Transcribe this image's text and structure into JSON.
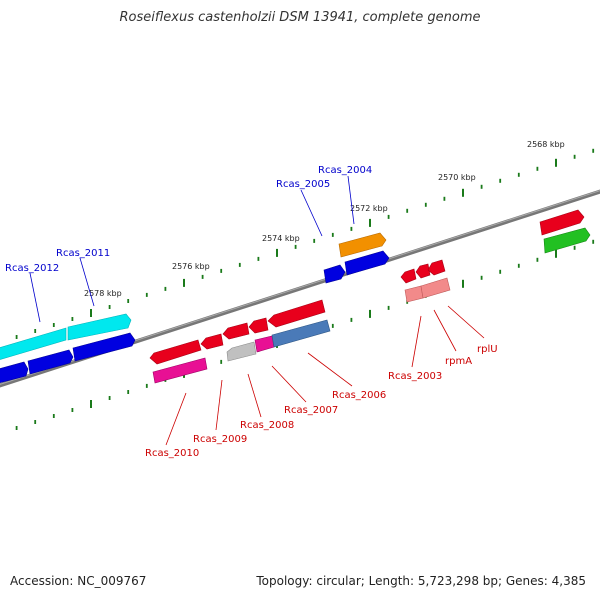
{
  "title": "Roseiflexus castenholzii DSM 13941, complete genome",
  "footer": {
    "accession": "Accession: NC_009767",
    "topology": "Topology: circular; Length: 5,723,298 bp; Genes: 4,385"
  },
  "scale_labels": [
    "2568 kbp",
    "2570 kbp",
    "2572 kbp",
    "2574 kbp",
    "2576 kbp",
    "2578 kbp"
  ],
  "gene_labels_top": [
    "Rcas_2004",
    "Rcas_2005",
    "Rcas_2011",
    "Rcas_2012"
  ],
  "gene_labels_bottom": [
    "Rcas_2003",
    "rpmA",
    "rplU",
    "Rcas_2006",
    "Rcas_2007",
    "Rcas_2008",
    "Rcas_2009",
    "Rcas_2010"
  ],
  "colors": {
    "backbone": "#777777",
    "ticks": "#1a7a1a",
    "top_label": "#0000cc",
    "bottom_label": "#cc0000",
    "red": "#e8001c",
    "blue": "#0000e0",
    "cyan": "#00e0e8",
    "orange": "#f08c00",
    "green": "#22c022",
    "magenta": "#e0109c",
    "pink": "#f08080",
    "gray": "#bdbdbd",
    "steel": "#4a7ab8"
  }
}
